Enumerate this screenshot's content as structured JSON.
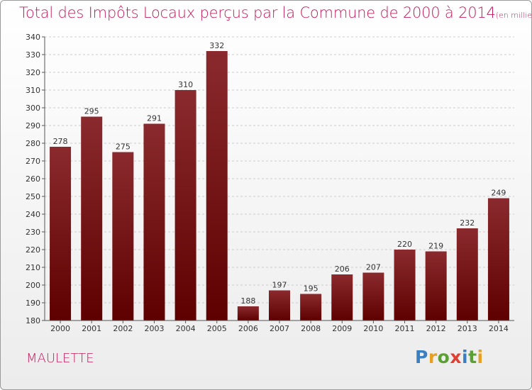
{
  "header": {
    "title": "Total des Impôts Locaux perçus par la Commune de 2000 à 2014",
    "unit": "(en milliers d'€)"
  },
  "commune": "MAULETTE",
  "logo": {
    "text": "Proxiti",
    "letter_colors": [
      "#3a7fc2",
      "#e8a020",
      "#5aa032",
      "#e04030",
      "#3a7fc2",
      "#5aa032",
      "#e8a020"
    ]
  },
  "colors": {
    "bar_top": "#8a2a2e",
    "bar_bottom": "#5e0000",
    "grid": "#cccccc",
    "title": "#c21b5a"
  },
  "chart_data": {
    "type": "bar",
    "title": "Total des Impôts Locaux perçus par la Commune de 2000 à 2014",
    "xlabel": "",
    "ylabel": "",
    "categories": [
      "2000",
      "2001",
      "2002",
      "2003",
      "2004",
      "2005",
      "2006",
      "2007",
      "2008",
      "2009",
      "2010",
      "2011",
      "2012",
      "2013",
      "2014"
    ],
    "values": [
      278,
      295,
      275,
      291,
      310,
      332,
      188,
      197,
      195,
      206,
      207,
      220,
      219,
      232,
      249
    ],
    "ylim": [
      180,
      340
    ],
    "yticks": [
      180,
      190,
      200,
      210,
      220,
      230,
      240,
      250,
      260,
      270,
      280,
      290,
      300,
      310,
      320,
      330,
      340
    ],
    "grid": true,
    "legend": "none"
  }
}
